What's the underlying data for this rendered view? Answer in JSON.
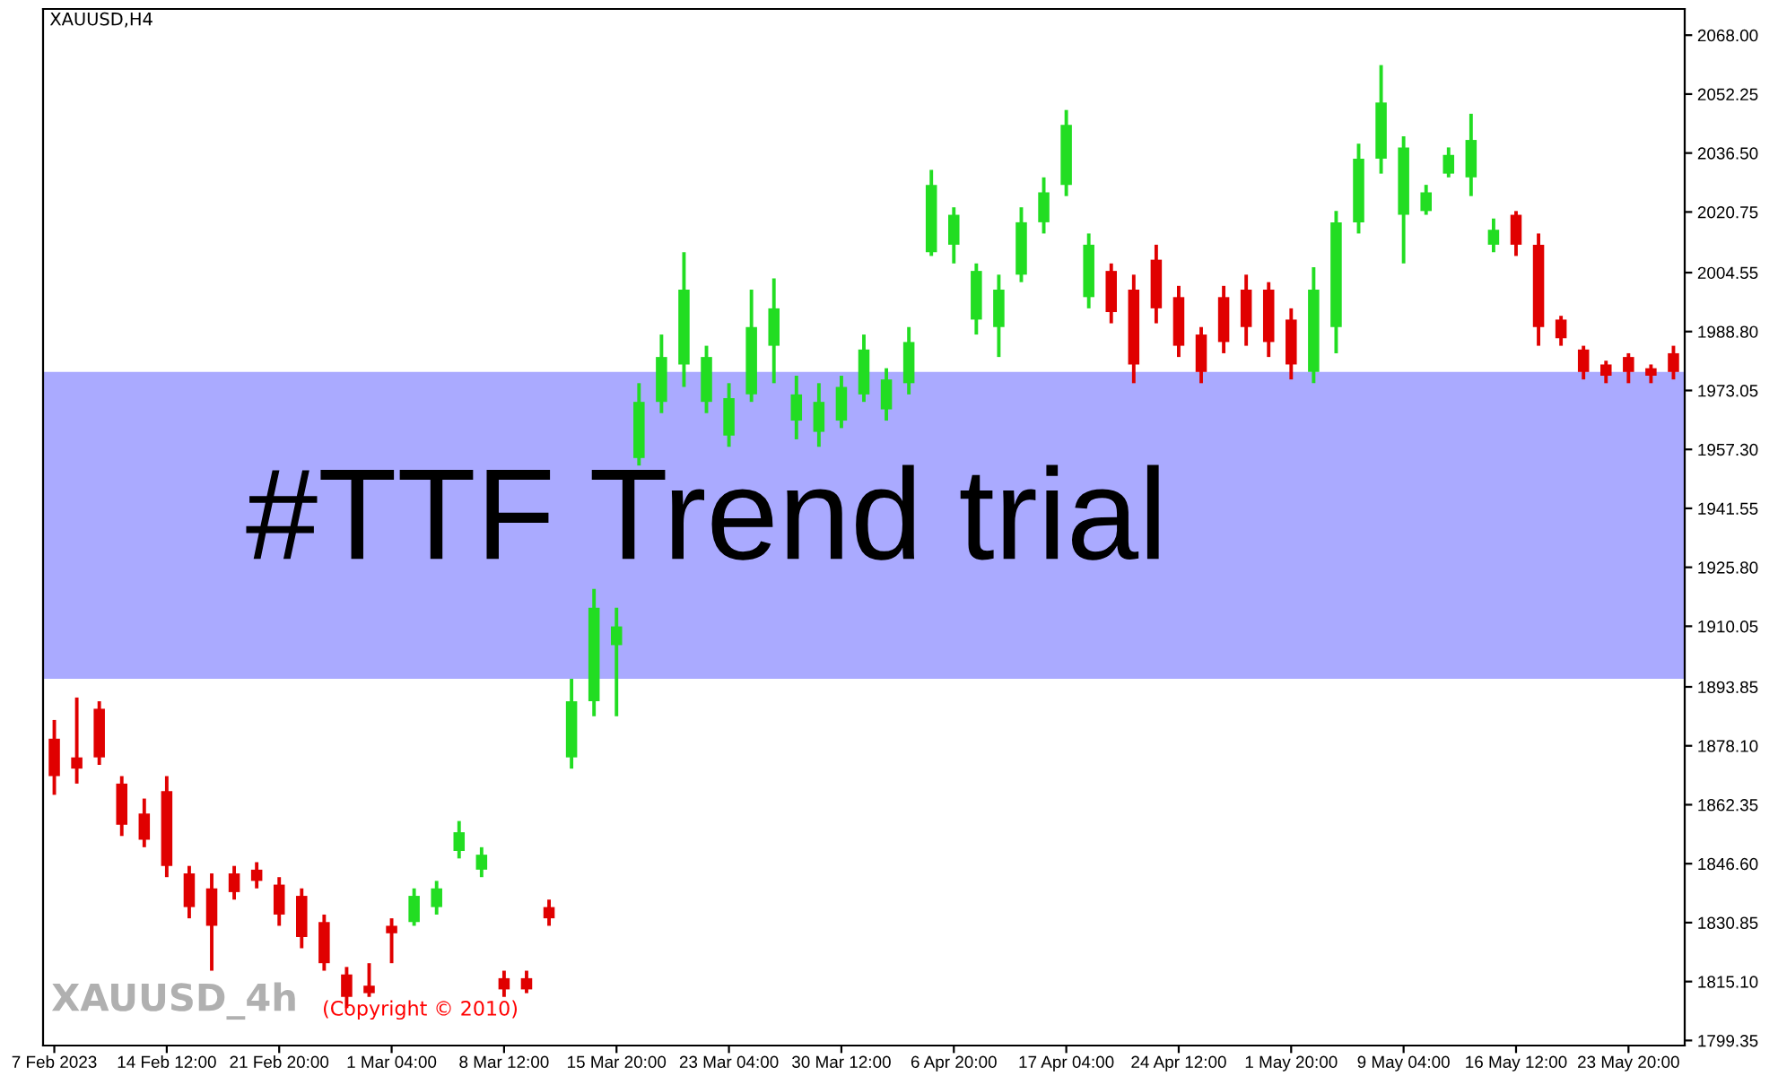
{
  "chart_data": {
    "type": "candlestick",
    "title": "XAUUSD,H4",
    "categories": [
      "7 Feb 2023",
      null,
      null,
      null,
      null,
      "14 Feb 12:00",
      null,
      null,
      null,
      null,
      "21 Feb 20:00",
      null,
      null,
      null,
      null,
      "1 Mar 04:00",
      null,
      null,
      null,
      null,
      "8 Mar 12:00",
      null,
      null,
      null,
      null,
      "15 Mar 20:00",
      null,
      null,
      null,
      null,
      "23 Mar 04:00",
      null,
      null,
      null,
      null,
      "30 Mar 12:00",
      null,
      null,
      null,
      null,
      "6 Apr 20:00",
      null,
      null,
      null,
      null,
      "17 Apr 04:00",
      null,
      null,
      null,
      null,
      "24 Apr 12:00",
      null,
      null,
      null,
      null,
      "1 May 20:00",
      null,
      null,
      null,
      null,
      "9 May 04:00",
      null,
      null,
      null,
      null,
      "16 May 12:00",
      null,
      null,
      null,
      null,
      "23 May 20:00",
      null,
      null
    ],
    "ohlc": [
      [
        1880,
        1885,
        1865,
        1870
      ],
      [
        1875,
        1891,
        1868,
        1872
      ],
      [
        1888,
        1890,
        1873,
        1875
      ],
      [
        1868,
        1870,
        1854,
        1857
      ],
      [
        1860,
        1864,
        1851,
        1853
      ],
      [
        1866,
        1870,
        1843,
        1846
      ],
      [
        1844,
        1846,
        1832,
        1835
      ],
      [
        1840,
        1844,
        1818,
        1830
      ],
      [
        1844,
        1846,
        1837,
        1839
      ],
      [
        1845,
        1847,
        1840,
        1842
      ],
      [
        1841,
        1843,
        1830,
        1833
      ],
      [
        1838,
        1840,
        1824,
        1827
      ],
      [
        1831,
        1833,
        1818,
        1820
      ],
      [
        1817,
        1819,
        1808,
        1811
      ],
      [
        1814,
        1820,
        1811,
        1812
      ],
      [
        1830,
        1832,
        1820,
        1828
      ],
      [
        1831,
        1840,
        1830,
        1838
      ],
      [
        1835,
        1842,
        1833,
        1840
      ],
      [
        1850,
        1858,
        1848,
        1855
      ],
      [
        1845,
        1851,
        1843,
        1849
      ],
      [
        1816,
        1818,
        1811,
        1813
      ],
      [
        1816,
        1818,
        1812,
        1813
      ],
      [
        1835,
        1837,
        1830,
        1832
      ],
      [
        1875,
        1896,
        1872,
        1890
      ],
      [
        1890,
        1920,
        1886,
        1915
      ],
      [
        1905,
        1915,
        1886,
        1910
      ],
      [
        1955,
        1975,
        1953,
        1970
      ],
      [
        1970,
        1988,
        1967,
        1982
      ],
      [
        1980,
        2010,
        1974,
        2000
      ],
      [
        1970,
        1985,
        1967,
        1982
      ],
      [
        1961,
        1975,
        1958,
        1971
      ],
      [
        1972,
        2000,
        1970,
        1990
      ],
      [
        1985,
        2003,
        1975,
        1995
      ],
      [
        1965,
        1977,
        1960,
        1972
      ],
      [
        1962,
        1975,
        1958,
        1970
      ],
      [
        1965,
        1977,
        1963,
        1974
      ],
      [
        1972,
        1988,
        1970,
        1984
      ],
      [
        1968,
        1979,
        1965,
        1976
      ],
      [
        1975,
        1990,
        1972,
        1986
      ],
      [
        2010,
        2032,
        2009,
        2028
      ],
      [
        2012,
        2022,
        2007,
        2020
      ],
      [
        1992,
        2007,
        1988,
        2005
      ],
      [
        1990,
        2004,
        1982,
        2000
      ],
      [
        2004,
        2022,
        2002,
        2018
      ],
      [
        2018,
        2030,
        2015,
        2026
      ],
      [
        2028,
        2048,
        2025,
        2044
      ],
      [
        1998,
        2015,
        1995,
        2012
      ],
      [
        2005,
        2007,
        1991,
        1994
      ],
      [
        2000,
        2004,
        1975,
        1980
      ],
      [
        2008,
        2012,
        1991,
        1995
      ],
      [
        1998,
        2001,
        1982,
        1985
      ],
      [
        1988,
        1990,
        1975,
        1978
      ],
      [
        1998,
        2001,
        1983,
        1986
      ],
      [
        2000,
        2004,
        1985,
        1990
      ],
      [
        2000,
        2002,
        1982,
        1986
      ],
      [
        1992,
        1995,
        1976,
        1980
      ],
      [
        1978,
        2006,
        1975,
        2000
      ],
      [
        1990,
        2021,
        1983,
        2018
      ],
      [
        2018,
        2039,
        2015,
        2035
      ],
      [
        2035,
        2060,
        2031,
        2050
      ],
      [
        2020,
        2041,
        2007,
        2038
      ],
      [
        2021,
        2028,
        2020,
        2026
      ],
      [
        2031,
        2038,
        2030,
        2036
      ],
      [
        2030,
        2047,
        2025,
        2040
      ],
      [
        2012,
        2019,
        2010,
        2016
      ],
      [
        2020,
        2021,
        2009,
        2012
      ],
      [
        2012,
        2015,
        1985,
        1990
      ],
      [
        1992,
        1993,
        1985,
        1987
      ],
      [
        1984,
        1985,
        1976,
        1978
      ],
      [
        1980,
        1981,
        1975,
        1977
      ],
      [
        1982,
        1983,
        1975,
        1978
      ],
      [
        1979,
        1980,
        1975,
        1977
      ],
      [
        1983,
        1985,
        1976,
        1978
      ]
    ],
    "colors": [
      "#e00000",
      "#e00000",
      "#e00000",
      "#e00000",
      "#e00000",
      "#e00000",
      "#e00000",
      "#e00000",
      "#e00000",
      "#e00000",
      "#e00000",
      "#e00000",
      "#e00000",
      "#e00000",
      "#e00000",
      "#e00000",
      "#22dd22",
      "#22dd22",
      "#22dd22",
      "#22dd22",
      "#e00000",
      "#e00000",
      "#e00000",
      "#22dd22",
      "#22dd22",
      "#22dd22",
      "#22dd22",
      "#22dd22",
      "#22dd22",
      "#22dd22",
      "#22dd22",
      "#22dd22",
      "#22dd22",
      "#22dd22",
      "#22dd22",
      "#22dd22",
      "#22dd22",
      "#22dd22",
      "#22dd22",
      "#22dd22",
      "#22dd22",
      "#22dd22",
      "#22dd22",
      "#22dd22",
      "#22dd22",
      "#22dd22",
      "#22dd22",
      "#e00000",
      "#e00000",
      "#e00000",
      "#e00000",
      "#e00000",
      "#e00000",
      "#e00000",
      "#e00000",
      "#e00000",
      "#22dd22",
      "#22dd22",
      "#22dd22",
      "#22dd22",
      "#22dd22",
      "#22dd22",
      "#22dd22",
      "#22dd22",
      "#22dd22",
      "#e00000",
      "#e00000",
      "#e00000",
      "#e00000",
      "#e00000",
      "#e00000",
      "#e00000",
      "#e00000"
    ],
    "ylim": [
      1798,
      2075
    ],
    "yticks": [
      {
        "value": 1799.35,
        "label": "1799.35"
      },
      {
        "value": 1815.1,
        "label": "1815.10"
      },
      {
        "value": 1830.85,
        "label": "1830.85"
      },
      {
        "value": 1846.6,
        "label": "1846.60"
      },
      {
        "value": 1862.35,
        "label": "1862.35"
      },
      {
        "value": 1878.1,
        "label": "1878.10"
      },
      {
        "value": 1893.85,
        "label": "1893.85"
      },
      {
        "value": 1910.05,
        "label": "1910.05"
      },
      {
        "value": 1925.8,
        "label": "1925.80"
      },
      {
        "value": 1941.55,
        "label": "1941.55"
      },
      {
        "value": 1957.3,
        "label": "1957.30"
      },
      {
        "value": 1973.05,
        "label": "1973.05"
      },
      {
        "value": 1988.8,
        "label": "1988.80"
      },
      {
        "value": 2004.55,
        "label": "2004.55"
      },
      {
        "value": 2020.75,
        "label": "2020.75"
      },
      {
        "value": 2036.5,
        "label": "2036.50"
      },
      {
        "value": 2052.25,
        "label": "2052.25"
      },
      {
        "value": 2068,
        "label": "2068.00"
      }
    ],
    "bands": [
      {
        "axis": "y",
        "from": 1896,
        "to": 1978,
        "label": "#TTF Trend trial",
        "color": "#aaaaff"
      }
    ],
    "annotations": [
      "XAUUSD_4h",
      "(Copyright © 2010)"
    ],
    "grid": false
  }
}
